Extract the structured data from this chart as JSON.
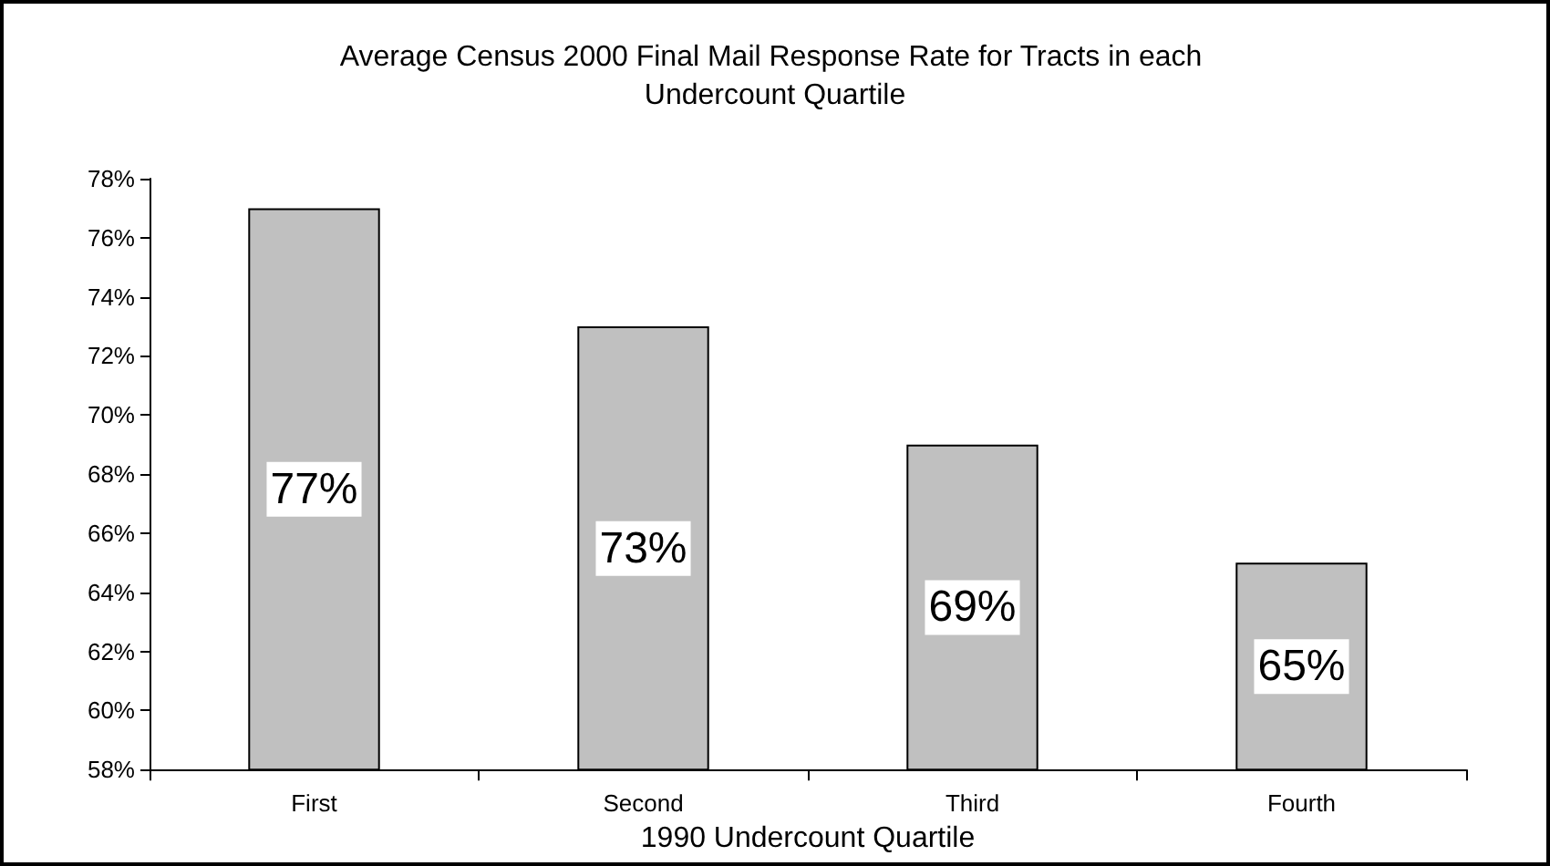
{
  "chart_data": {
    "type": "bar",
    "title": "Average Census 2000 Final Mail Response Rate for Tracts in each Undercount Quartile",
    "xlabel": "1990 Undercount Quartile",
    "categories": [
      "First",
      "Second",
      "Third",
      "Fourth"
    ],
    "values": [
      77,
      73,
      69,
      65
    ],
    "value_labels": [
      "77%",
      "73%",
      "69%",
      "65%"
    ],
    "color": "#c0c0c0",
    "ylim": [
      58,
      78
    ],
    "yticks": [
      {
        "value": 58,
        "label": "58%"
      },
      {
        "value": 60,
        "label": "60%"
      },
      {
        "value": 62,
        "label": "62%"
      },
      {
        "value": 64,
        "label": "64%"
      },
      {
        "value": 66,
        "label": "66%"
      },
      {
        "value": 68,
        "label": "68%"
      },
      {
        "value": 70,
        "label": "70%"
      },
      {
        "value": 72,
        "label": "72%"
      },
      {
        "value": 74,
        "label": "74%"
      },
      {
        "value": 76,
        "label": "76%"
      },
      {
        "value": 78,
        "label": "78%"
      }
    ],
    "grid": false
  }
}
